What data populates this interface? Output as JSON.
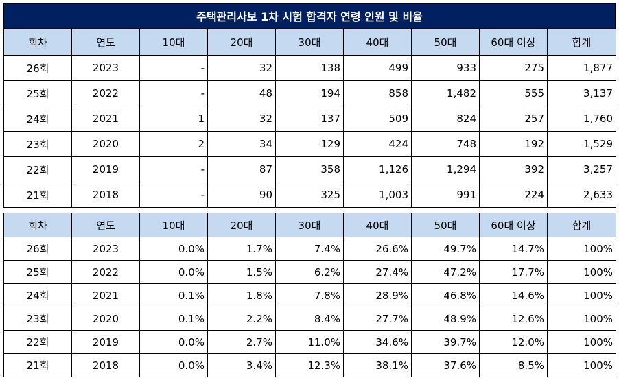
{
  "title": "주택관리사보 1차 시험 합격자 연령 인원 및 비율",
  "headers": [
    "회차",
    "연도",
    "10대",
    "20대",
    "30대",
    "40대",
    "50대",
    "60대 이상",
    "합계"
  ],
  "counts": [
    [
      "26회",
      "2023",
      "-",
      "32",
      "138",
      "499",
      "933",
      "275",
      "1,877"
    ],
    [
      "25회",
      "2022",
      "-",
      "48",
      "194",
      "858",
      "1,482",
      "555",
      "3,137"
    ],
    [
      "24회",
      "2021",
      "1",
      "32",
      "137",
      "509",
      "824",
      "257",
      "1,760"
    ],
    [
      "23회",
      "2020",
      "2",
      "34",
      "129",
      "424",
      "748",
      "192",
      "1,529"
    ],
    [
      "22회",
      "2019",
      "-",
      "87",
      "358",
      "1,126",
      "1,294",
      "392",
      "3,257"
    ],
    [
      "21회",
      "2018",
      "-",
      "90",
      "325",
      "1,003",
      "991",
      "224",
      "2,633"
    ]
  ],
  "ratios": [
    [
      "26회",
      "2023",
      "0.0%",
      "1.7%",
      "7.4%",
      "26.6%",
      "49.7%",
      "14.7%",
      "100%"
    ],
    [
      "25회",
      "2022",
      "0.0%",
      "1.5%",
      "6.2%",
      "27.4%",
      "47.2%",
      "17.7%",
      "100%"
    ],
    [
      "24회",
      "2021",
      "0.1%",
      "1.8%",
      "7.8%",
      "28.9%",
      "46.8%",
      "14.6%",
      "100%"
    ],
    [
      "23회",
      "2020",
      "0.1%",
      "2.2%",
      "8.4%",
      "27.7%",
      "48.9%",
      "12.6%",
      "100%"
    ],
    [
      "22회",
      "2019",
      "0.0%",
      "2.7%",
      "11.0%",
      "34.6%",
      "39.7%",
      "12.0%",
      "100%"
    ],
    [
      "21회",
      "2018",
      "0.0%",
      "3.4%",
      "12.3%",
      "38.1%",
      "37.6%",
      "8.5%",
      "100%"
    ]
  ]
}
